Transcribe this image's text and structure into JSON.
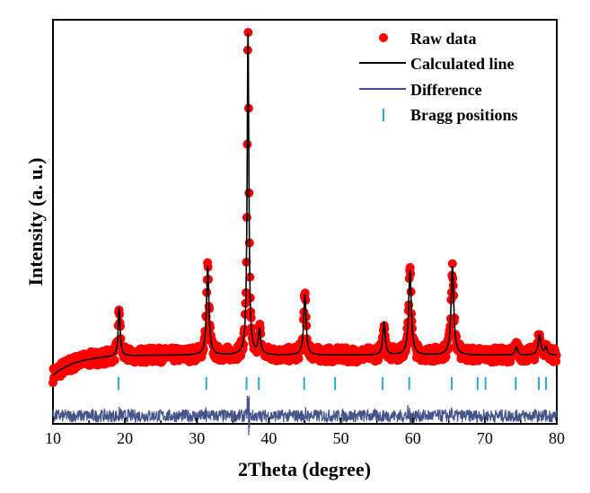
{
  "chart_data": {
    "type": "line",
    "title": "",
    "xlabel": "2Theta (degree)",
    "ylabel": "Intensity (a. u.)",
    "xlim": [
      10,
      80
    ],
    "ylim": [
      0,
      100
    ],
    "x_ticks": [
      10,
      20,
      30,
      40,
      50,
      60,
      70,
      80
    ],
    "y_ticks_shown": false,
    "grid": false,
    "legend_position": "top-right",
    "legend": [
      {
        "label": "Raw data",
        "marker": "circle",
        "color": "#ff0000"
      },
      {
        "label": "Calculated line",
        "marker": "line",
        "color": "#000000"
      },
      {
        "label": "Difference",
        "marker": "line",
        "color": "#44538a"
      },
      {
        "label": "Bragg positions",
        "marker": "tick",
        "color": "#2fa7d8"
      }
    ],
    "background_level": 17,
    "background_start": 12,
    "peaks": [
      {
        "x": 19.2,
        "height": 12,
        "width": 0.16
      },
      {
        "x": 31.5,
        "height": 22,
        "width": 0.2
      },
      {
        "x": 37.1,
        "height": 80,
        "width": 0.14
      },
      {
        "x": 38.7,
        "height": 6,
        "width": 0.2
      },
      {
        "x": 45.0,
        "height": 15,
        "width": 0.2
      },
      {
        "x": 56.0,
        "height": 8,
        "width": 0.2
      },
      {
        "x": 59.6,
        "height": 21,
        "width": 0.22
      },
      {
        "x": 65.5,
        "height": 22,
        "width": 0.22
      },
      {
        "x": 74.4,
        "height": 2,
        "width": 0.2
      },
      {
        "x": 77.6,
        "height": 5,
        "width": 0.22
      },
      {
        "x": 78.5,
        "height": 2,
        "width": 0.2
      }
    ],
    "bragg_positions": [
      19.1,
      31.3,
      36.9,
      38.6,
      44.9,
      49.2,
      55.8,
      59.5,
      65.4,
      69.0,
      70.1,
      74.3,
      77.5,
      78.5
    ],
    "bragg_level": 10,
    "difference_baseline": 2,
    "difference_amplitude": 1.6,
    "raw_noise_amplitude": 1.8,
    "colors": {
      "raw": "#ff0000",
      "calc": "#000000",
      "difference": "#44538a",
      "bragg": "#2fa7d8",
      "axis": "#000000"
    }
  }
}
